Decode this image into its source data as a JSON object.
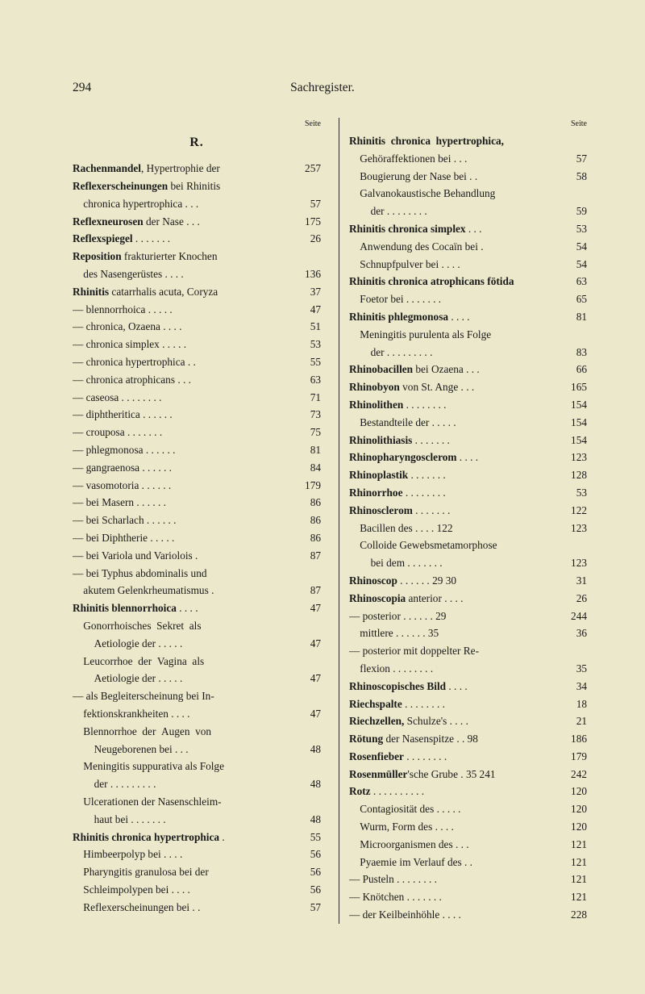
{
  "header": {
    "page_number": "294",
    "title": "Sachregister."
  },
  "seite_label": "Seite",
  "section_letter": "R.",
  "left_column": [
    {
      "text": "<b>Rachenmandel</b>, Hypertrophie der",
      "page": "257"
    },
    {
      "text": "<b>Reflexerscheinungen</b> bei Rhinitis",
      "page": ""
    },
    {
      "text": "&nbsp;&nbsp;&nbsp;&nbsp;chronica hypertrophica . . .",
      "page": "57"
    },
    {
      "text": "<b>Reflexneurosen</b> der Nase . . .",
      "page": "175"
    },
    {
      "text": "<b>Reflexspiegel</b> . . . . . . .",
      "page": "26"
    },
    {
      "text": "<b>Reposition</b> frakturierter Knochen",
      "page": ""
    },
    {
      "text": "&nbsp;&nbsp;&nbsp;&nbsp;des Nasengerüstes . . . .",
      "page": "136"
    },
    {
      "text": "<b>Rhinitis</b> catarrhalis acuta, Coryza",
      "page": "37"
    },
    {
      "text": "— blennorrhoica . . . . .",
      "page": "47"
    },
    {
      "text": "— chronica, Ozaena . . . .",
      "page": "51"
    },
    {
      "text": "— chronica simplex . . . . .",
      "page": "53"
    },
    {
      "text": "— chronica hypertrophica . .",
      "page": "55"
    },
    {
      "text": "— chronica atrophicans . . .",
      "page": "63"
    },
    {
      "text": "— caseosa . . . . . . . .",
      "page": "71"
    },
    {
      "text": "— diphtheritica . . . . . .",
      "page": "73"
    },
    {
      "text": "— crouposa . . . . . . .",
      "page": "75"
    },
    {
      "text": "— phlegmonosa . . . . . .",
      "page": "81"
    },
    {
      "text": "— gangraenosa . . . . . .",
      "page": "84"
    },
    {
      "text": "— vasomotoria . . . . . .",
      "page": "179"
    },
    {
      "text": "— bei Masern . . . . . .",
      "page": "86"
    },
    {
      "text": "— bei Scharlach . . . . . .",
      "page": "86"
    },
    {
      "text": "— bei Diphtherie . . . . .",
      "page": "86"
    },
    {
      "text": "— bei Variola und Variolois .",
      "page": "87"
    },
    {
      "text": "— bei Typhus abdominalis und",
      "page": ""
    },
    {
      "text": "&nbsp;&nbsp;&nbsp;&nbsp;akutem Gelenkrheumatismus .",
      "page": "87"
    },
    {
      "text": "<b>Rhinitis blennorrhoica</b> . . . .",
      "page": "47"
    },
    {
      "text": "&nbsp;&nbsp;&nbsp;&nbsp;Gonorrhoisches&nbsp;&nbsp;Sekret&nbsp;&nbsp;als",
      "page": ""
    },
    {
      "text": "&nbsp;&nbsp;&nbsp;&nbsp;&nbsp;&nbsp;&nbsp;&nbsp;Aetiologie der . . . . .",
      "page": "47"
    },
    {
      "text": "&nbsp;&nbsp;&nbsp;&nbsp;Leucorrhoe&nbsp;&nbsp;der&nbsp;&nbsp;Vagina&nbsp;&nbsp;als",
      "page": ""
    },
    {
      "text": "&nbsp;&nbsp;&nbsp;&nbsp;&nbsp;&nbsp;&nbsp;&nbsp;Aetiologie der . . . . .",
      "page": "47"
    },
    {
      "text": "— als Begleiterscheinung bei In-",
      "page": ""
    },
    {
      "text": "&nbsp;&nbsp;&nbsp;&nbsp;fektionskrankheiten . . . .",
      "page": "47"
    },
    {
      "text": "&nbsp;&nbsp;&nbsp;&nbsp;Blennorrhoe&nbsp;&nbsp;der&nbsp;&nbsp;Augen&nbsp;&nbsp;von",
      "page": ""
    },
    {
      "text": "&nbsp;&nbsp;&nbsp;&nbsp;&nbsp;&nbsp;&nbsp;&nbsp;Neugeborenen bei . . .",
      "page": "48"
    },
    {
      "text": "&nbsp;&nbsp;&nbsp;&nbsp;Meningitis suppurativa als Folge",
      "page": ""
    },
    {
      "text": "&nbsp;&nbsp;&nbsp;&nbsp;&nbsp;&nbsp;&nbsp;&nbsp;der . . . . . . . . .",
      "page": "48"
    },
    {
      "text": "&nbsp;&nbsp;&nbsp;&nbsp;Ulcerationen der Nasenschleim-",
      "page": ""
    },
    {
      "text": "&nbsp;&nbsp;&nbsp;&nbsp;&nbsp;&nbsp;&nbsp;&nbsp;haut bei . . . . . . .",
      "page": "48"
    },
    {
      "text": "<b>Rhinitis chronica hypertrophica</b> .",
      "page": "55"
    },
    {
      "text": "&nbsp;&nbsp;&nbsp;&nbsp;Himbeerpolyp bei . . . .",
      "page": "56"
    },
    {
      "text": "&nbsp;&nbsp;&nbsp;&nbsp;Pharyngitis granulosa bei der",
      "page": "56"
    },
    {
      "text": "&nbsp;&nbsp;&nbsp;&nbsp;Schleimpolypen bei . . . .",
      "page": "56"
    },
    {
      "text": "&nbsp;&nbsp;&nbsp;&nbsp;Reflexerscheinungen bei . .",
      "page": "57"
    }
  ],
  "right_column": [
    {
      "text": "<b>Rhinitis&nbsp;&nbsp;chronica&nbsp;&nbsp;hypertrophica,</b>",
      "page": ""
    },
    {
      "text": "&nbsp;&nbsp;&nbsp;&nbsp;Gehöraffektionen bei . . .",
      "page": "57"
    },
    {
      "text": "&nbsp;&nbsp;&nbsp;&nbsp;Bougierung der Nase bei . .",
      "page": "58"
    },
    {
      "text": "&nbsp;&nbsp;&nbsp;&nbsp;Galvanokaustische Behandlung",
      "page": ""
    },
    {
      "text": "&nbsp;&nbsp;&nbsp;&nbsp;&nbsp;&nbsp;&nbsp;&nbsp;der . . . . . . . .",
      "page": "59"
    },
    {
      "text": "<b>Rhinitis chronica simplex</b> . . .",
      "page": "53"
    },
    {
      "text": "&nbsp;&nbsp;&nbsp;&nbsp;Anwendung des Cocaïn bei .",
      "page": "54"
    },
    {
      "text": "&nbsp;&nbsp;&nbsp;&nbsp;Schnupfpulver bei . . . .",
      "page": "54"
    },
    {
      "text": "<b>Rhinitis chronica atrophicans fötida</b>",
      "page": "63"
    },
    {
      "text": "&nbsp;&nbsp;&nbsp;&nbsp;Foetor bei . . . . . . .",
      "page": "65"
    },
    {
      "text": "<b>Rhinitis phlegmonosa</b> . . . .",
      "page": "81"
    },
    {
      "text": "&nbsp;&nbsp;&nbsp;&nbsp;Meningitis purulenta als Folge",
      "page": ""
    },
    {
      "text": "&nbsp;&nbsp;&nbsp;&nbsp;&nbsp;&nbsp;&nbsp;&nbsp;der . . . . . . . . .",
      "page": "83"
    },
    {
      "text": "<b>Rhinobacillen</b> bei Ozaena . . .",
      "page": "66"
    },
    {
      "text": "<b>Rhinobyon</b> von St. Ange . . .",
      "page": "165"
    },
    {
      "text": "<b>Rhinolithen</b> . . . . . . . .",
      "page": "154"
    },
    {
      "text": "&nbsp;&nbsp;&nbsp;&nbsp;Bestandteile der . . . . .",
      "page": "154"
    },
    {
      "text": "<b>Rhinolithiasis</b> . . . . . . .",
      "page": "154"
    },
    {
      "text": "<b>Rhinopharyngosclerom</b> . . . .",
      "page": "123"
    },
    {
      "text": "<b>Rhinoplastik</b> . . . . . . .",
      "page": "128"
    },
    {
      "text": "<b>Rhinorrhoe</b> . . . . . . . .",
      "page": "53"
    },
    {
      "text": "<b>Rhinosclerom</b> . . . . . . .",
      "page": "122"
    },
    {
      "text": "&nbsp;&nbsp;&nbsp;&nbsp;Bacillen des . . . . 122",
      "page": "123"
    },
    {
      "text": "&nbsp;&nbsp;&nbsp;&nbsp;Colloide Gewebsmetamorphose",
      "page": ""
    },
    {
      "text": "&nbsp;&nbsp;&nbsp;&nbsp;&nbsp;&nbsp;&nbsp;&nbsp;bei dem . . . . . . .",
      "page": "123"
    },
    {
      "text": "<b>Rhinoscop</b> . . . . . . 29 30",
      "page": "31"
    },
    {
      "text": "<b>Rhinoscopia</b> anterior . . . .",
      "page": "26"
    },
    {
      "text": "— posterior . . . . . . 29",
      "page": "244"
    },
    {
      "text": "&nbsp;&nbsp;&nbsp;&nbsp;mittlere . . . . . . 35",
      "page": "36"
    },
    {
      "text": "— posterior mit doppelter Re-",
      "page": ""
    },
    {
      "text": "&nbsp;&nbsp;&nbsp;&nbsp;flexion . . . . . . . .",
      "page": "35"
    },
    {
      "text": "<b>Rhinoscopisches Bild</b> . . . .",
      "page": "34"
    },
    {
      "text": "<b>Riechspalte</b> . . . . . . . .",
      "page": "18"
    },
    {
      "text": "<b>Riechzellen,</b> Schulze's . . . .",
      "page": "21"
    },
    {
      "text": "<b>Rötung</b> der Nasenspitze . . 98",
      "page": "186"
    },
    {
      "text": "<b>Rosenfieber</b> . . . . . . . .",
      "page": "179"
    },
    {
      "text": "<b>Rosenmüller</b>'sche Grube . 35 241",
      "page": "242"
    },
    {
      "text": "<b>Rotz</b> . . . . . . . . . .",
      "page": "120"
    },
    {
      "text": "&nbsp;&nbsp;&nbsp;&nbsp;Contagiosität des . . . . .",
      "page": "120"
    },
    {
      "text": "&nbsp;&nbsp;&nbsp;&nbsp;Wurm, Form des . . . .",
      "page": "120"
    },
    {
      "text": "&nbsp;&nbsp;&nbsp;&nbsp;Microorganismen des . . .",
      "page": "121"
    },
    {
      "text": "&nbsp;&nbsp;&nbsp;&nbsp;Pyaemie im Verlauf des . .",
      "page": "121"
    },
    {
      "text": "— Pusteln . . . . . . . .",
      "page": "121"
    },
    {
      "text": "— Knötchen . . . . . . .",
      "page": "121"
    },
    {
      "text": "— der Keilbeinhöhle . . . .",
      "page": "228"
    }
  ]
}
